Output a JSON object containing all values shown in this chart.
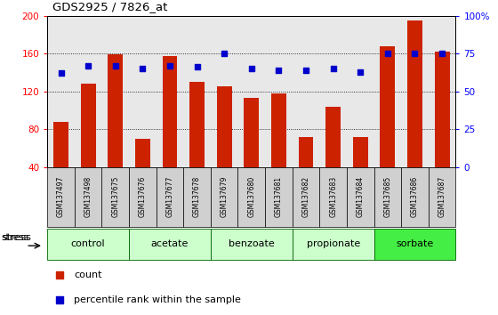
{
  "title": "GDS2925 / 7826_at",
  "samples": [
    "GSM137497",
    "GSM137498",
    "GSM137675",
    "GSM137676",
    "GSM137677",
    "GSM137678",
    "GSM137679",
    "GSM137680",
    "GSM137681",
    "GSM137682",
    "GSM137683",
    "GSM137684",
    "GSM137685",
    "GSM137686",
    "GSM137687"
  ],
  "counts": [
    88,
    128,
    159,
    70,
    157,
    130,
    125,
    113,
    118,
    72,
    104,
    72,
    168,
    195,
    162
  ],
  "percentiles": [
    62,
    67,
    67,
    65,
    67,
    66,
    75,
    65,
    64,
    64,
    65,
    63,
    75,
    75,
    75
  ],
  "ylim_left": [
    40,
    200
  ],
  "ylim_right": [
    0,
    100
  ],
  "yticks_left": [
    40,
    80,
    120,
    160,
    200
  ],
  "yticks_right": [
    0,
    25,
    50,
    75,
    100
  ],
  "groups": [
    {
      "label": "control",
      "start": 0,
      "end": 2,
      "color": "#ccffcc"
    },
    {
      "label": "acetate",
      "start": 3,
      "end": 5,
      "color": "#ccffcc"
    },
    {
      "label": "benzoate",
      "start": 6,
      "end": 8,
      "color": "#ccffcc"
    },
    {
      "label": "propionate",
      "start": 9,
      "end": 11,
      "color": "#ccffcc"
    },
    {
      "label": "sorbate",
      "start": 12,
      "end": 14,
      "color": "#44ee44"
    }
  ],
  "bar_color": "#cc2200",
  "dot_color": "#0000cc",
  "grid_style": "dotted",
  "legend_items": [
    "count",
    "percentile rank within the sample"
  ],
  "stress_label": "stress",
  "bg_plot": "#e8e8e8",
  "bg_sample_box": "#d0d0d0",
  "bg_white": "#ffffff"
}
